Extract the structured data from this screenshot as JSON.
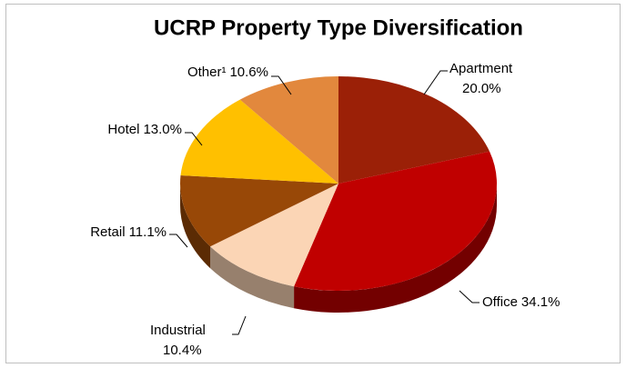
{
  "chart_data": {
    "type": "pie",
    "title": "UCRP Property Type Diversification",
    "categories": [
      "Apartment",
      "Office",
      "Industrial",
      "Retail",
      "Hotel",
      "Other¹"
    ],
    "values": [
      20.0,
      34.1,
      10.4,
      11.1,
      13.0,
      10.6
    ],
    "value_labels": [
      "20.0%",
      "34.1%",
      "10.4%",
      "11.1%",
      "13.0%",
      "10.6%"
    ],
    "colors": [
      "#9b2007",
      "#c00000",
      "#fbd5b5",
      "#984807",
      "#ffc000",
      "#e2883d"
    ]
  }
}
